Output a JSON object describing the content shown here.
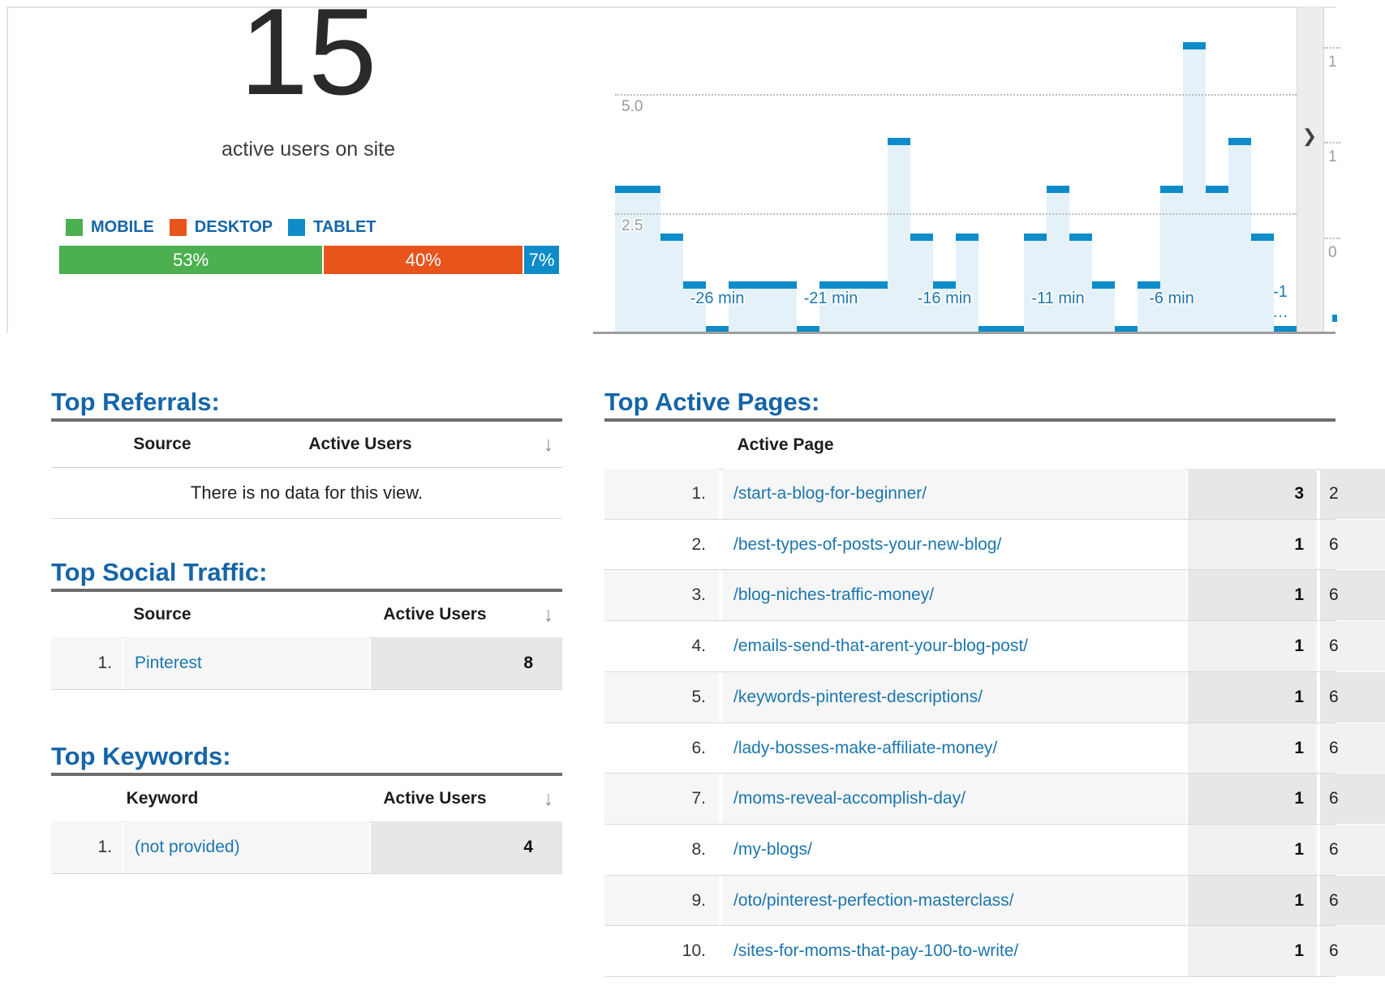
{
  "summary": {
    "active_users_count": "15",
    "caption": "active users on site"
  },
  "device_legend": [
    {
      "label": "MOBILE",
      "color": "#4caf50"
    },
    {
      "label": "DESKTOP",
      "color": "#e8541c"
    },
    {
      "label": "TABLET",
      "color": "#0e8cc9"
    }
  ],
  "device_split_bar": [
    {
      "label": "53%",
      "percent": 53,
      "color": "#4caf50"
    },
    {
      "label": "40%",
      "percent": 40,
      "color": "#e8541c"
    },
    {
      "label": "7%",
      "percent": 7,
      "color": "#0e8cc9"
    }
  ],
  "chart_data": {
    "type": "bar",
    "unit": "active users per minute",
    "x_minutes": [
      -30,
      -29,
      -28,
      -27,
      -26,
      -25,
      -24,
      -23,
      -22,
      -21,
      -20,
      -19,
      -18,
      -17,
      -16,
      -15,
      -14,
      -13,
      -12,
      -11,
      -10,
      -9,
      -8,
      -7,
      -6,
      -5,
      -4,
      -3,
      -2,
      -1
    ],
    "values": [
      3,
      3,
      2,
      1,
      0,
      1,
      1,
      1,
      0,
      1,
      1,
      1,
      4,
      2,
      1,
      2,
      0,
      0,
      2,
      3,
      2,
      1,
      0,
      1,
      3,
      6,
      3,
      4,
      2,
      0
    ],
    "y_ticks": [
      "5.0",
      "2.5"
    ],
    "x_tick_labels": [
      "-26 min",
      "-21 min",
      "-16 min",
      "-11 min",
      "-6 min"
    ],
    "x_tick_minutes": [
      -26,
      -21,
      -16,
      -11,
      -6
    ],
    "last_tick": {
      "line1": "-1",
      "line2": "…"
    },
    "ylim": [
      0,
      7
    ],
    "grid": "on",
    "bar_color": "#0e8cc9",
    "bar_fill_color": "#e4f1f9"
  },
  "right_mini_axis": {
    "tick_labels": [
      "1",
      "1",
      "0"
    ]
  },
  "expander": {
    "chevron": "❯"
  },
  "tables": {
    "referrals": {
      "heading": "Top Referrals:",
      "col1": "Source",
      "col2": "Active Users",
      "sort_icon": "↓",
      "empty_message": "There is no data for this view."
    },
    "social": {
      "heading": "Top Social Traffic:",
      "col1": "Source",
      "col2": "Active Users",
      "sort_icon": "↓",
      "rows": [
        {
          "rank": "1.",
          "name": "Pinterest",
          "value": "8"
        }
      ]
    },
    "keywords": {
      "heading": "Top Keywords:",
      "col1": "Keyword",
      "col2": "Active Users",
      "sort_icon": "↓",
      "rows": [
        {
          "rank": "1.",
          "name": "(not provided)",
          "value": "4"
        }
      ]
    },
    "pages": {
      "heading": "Top Active Pages:",
      "col1": "Active Page",
      "rows": [
        {
          "rank": "1.",
          "page": "/start-a-blog-for-beginner/",
          "value": "3",
          "extra": "2"
        },
        {
          "rank": "2.",
          "page": "/best-types-of-posts-your-new-blog/",
          "value": "1",
          "extra": "6"
        },
        {
          "rank": "3.",
          "page": "/blog-niches-traffic-money/",
          "value": "1",
          "extra": "6"
        },
        {
          "rank": "4.",
          "page": "/emails-send-that-arent-your-blog-post/",
          "value": "1",
          "extra": "6"
        },
        {
          "rank": "5.",
          "page": "/keywords-pinterest-descriptions/",
          "value": "1",
          "extra": "6"
        },
        {
          "rank": "6.",
          "page": "/lady-bosses-make-affiliate-money/",
          "value": "1",
          "extra": "6"
        },
        {
          "rank": "7.",
          "page": "/moms-reveal-accomplish-day/",
          "value": "1",
          "extra": "6"
        },
        {
          "rank": "8.",
          "page": "/my-blogs/",
          "value": "1",
          "extra": "6"
        },
        {
          "rank": "9.",
          "page": "/oto/pinterest-perfection-masterclass/",
          "value": "1",
          "extra": "6"
        },
        {
          "rank": "10.",
          "page": "/sites-for-moms-that-pay-100-to-write/",
          "value": "1",
          "extra": "6"
        }
      ]
    }
  }
}
